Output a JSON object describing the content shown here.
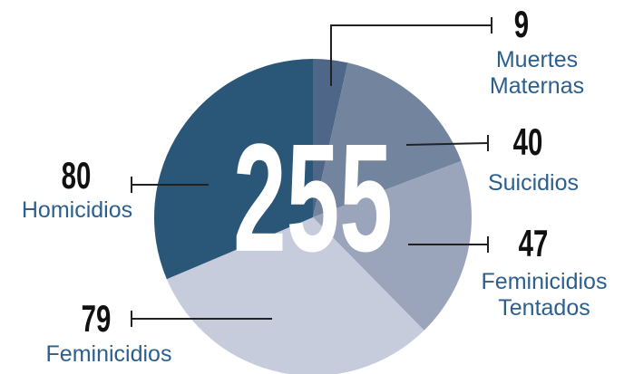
{
  "chart_data": {
    "type": "pie",
    "total": 255,
    "categories": [
      "Muertes Maternas",
      "Suicidios",
      "Feminicidios Tentados",
      "Feminicidios",
      "Homicidios"
    ],
    "values": [
      9,
      40,
      47,
      79,
      80
    ],
    "colors": [
      "#4e6687",
      "#73849f",
      "#9aa5bb",
      "#c6ccdc",
      "#2a5677"
    ]
  }
}
